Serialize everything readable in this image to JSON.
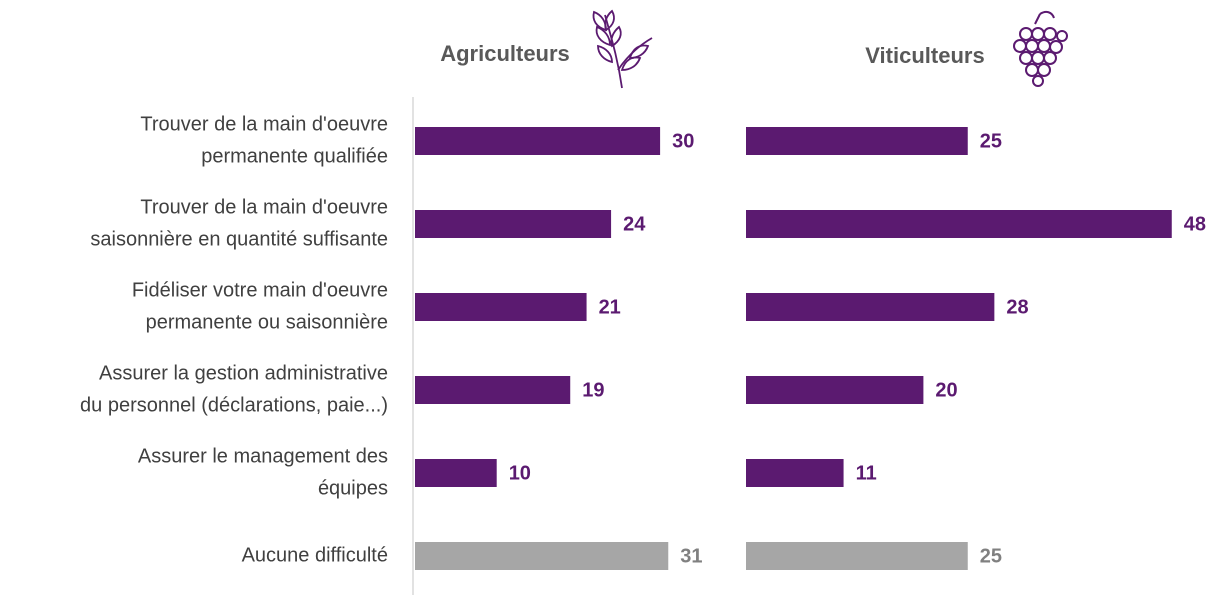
{
  "chart_data": [
    {
      "type": "bar",
      "title": "Agriculteurs",
      "categories": [
        [
          "Trouver de la main d'oeuvre",
          "permanente qualifiée"
        ],
        [
          "Trouver de la main d'oeuvre",
          "saisonnière en quantité suffisante"
        ],
        [
          "Fidéliser votre main d'oeuvre",
          "permanente ou saisonnière"
        ],
        [
          "Assurer la gestion administrative",
          "du personnel (déclarations, paie...)"
        ],
        [
          "Assurer le management des",
          "équipes"
        ],
        [
          "Aucune difficulté"
        ]
      ],
      "values": [
        30,
        24,
        21,
        19,
        10,
        31
      ],
      "colors": [
        "#5b1a70",
        "#5b1a70",
        "#5b1a70",
        "#5b1a70",
        "#5b1a70",
        "#a6a6a6"
      ]
    },
    {
      "type": "bar",
      "title": "Viticulteurs",
      "values": [
        25,
        48,
        28,
        20,
        11,
        25
      ],
      "colors": [
        "#5b1a70",
        "#5b1a70",
        "#5b1a70",
        "#5b1a70",
        "#5b1a70",
        "#a6a6a6"
      ]
    }
  ]
}
